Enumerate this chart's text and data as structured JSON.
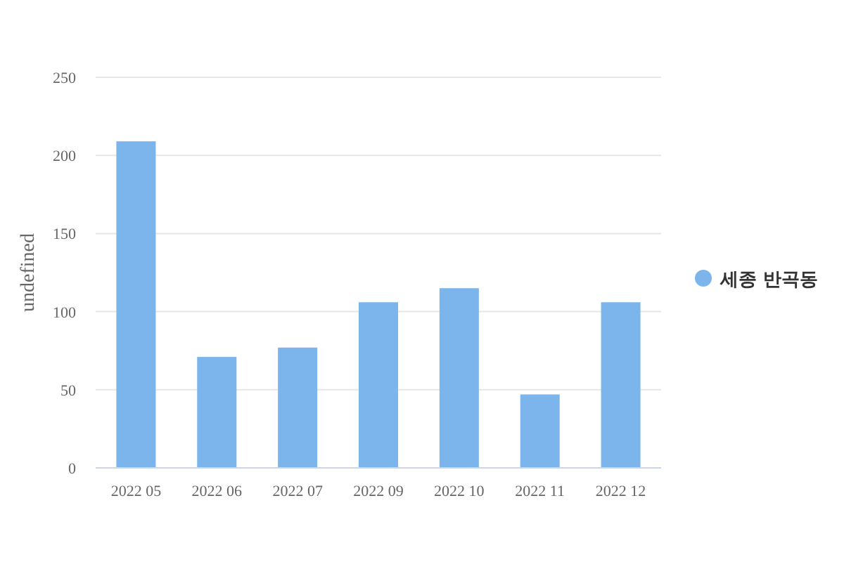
{
  "chart_data": {
    "type": "bar",
    "ylabel": "undefined",
    "categories": [
      "2022 05",
      "2022 06",
      "2022 07",
      "2022 09",
      "2022 10",
      "2022 11",
      "2022 12"
    ],
    "series": [
      {
        "name": "세종 반곡동",
        "color": "#7cb5ec",
        "values": [
          209,
          71,
          77,
          106,
          115,
          47,
          106
        ]
      }
    ],
    "ylim": [
      0,
      250
    ],
    "yticks": [
      0,
      50,
      100,
      150,
      200,
      250
    ],
    "grid": "y",
    "legend": "right"
  }
}
